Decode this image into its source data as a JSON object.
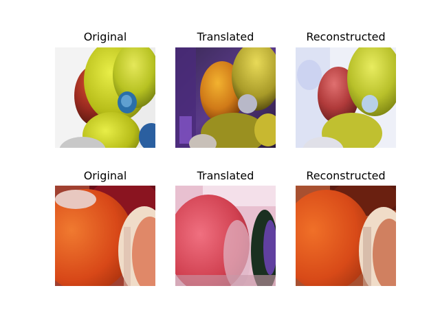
{
  "figure": {
    "rows": [
      {
        "panels": [
          {
            "title": "Original"
          },
          {
            "title": "Translated"
          },
          {
            "title": "Reconstructed"
          }
        ]
      },
      {
        "panels": [
          {
            "title": "Original"
          },
          {
            "title": "Translated"
          },
          {
            "title": "Reconstructed"
          }
        ]
      }
    ]
  }
}
